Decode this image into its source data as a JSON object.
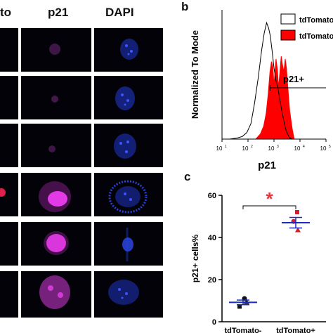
{
  "panel_a": {
    "column_headers": [
      "to",
      "p21",
      "DAPI"
    ]
  },
  "panel_b": {
    "letter": "b",
    "legend": [
      "tdTomato-",
      "tdTomato+"
    ],
    "gate_label": "p21+",
    "xlabel": "p21",
    "ylabel": "Normalized To Mode",
    "x_ticks": [
      "10",
      "10",
      "10",
      "10",
      "10"
    ],
    "x_tick_exponents": [
      "1",
      "2",
      "3",
      "4",
      "5"
    ],
    "colors": {
      "negative": "#000000",
      "positive": "#ff0000"
    }
  },
  "panel_c": {
    "letter": "c",
    "ylabel": "p21+ cells%",
    "categories": [
      "tdTomato-",
      "tdTomato+"
    ],
    "y_ticks": [
      "0",
      "20",
      "40",
      "60"
    ],
    "significance": "*",
    "colors": {
      "bars": "#1b2bbf",
      "group1": "#1b2bbf",
      "group2": "#d41c2c",
      "star": "#e8333a"
    }
  },
  "chart_data": [
    {
      "type": "area",
      "xlabel": "p21",
      "ylabel": "Normalized To Mode",
      "xscale": "log",
      "xlim": [
        10,
        100000
      ],
      "ylim": [
        0,
        100
      ],
      "legend_position": "top-right",
      "series": [
        {
          "name": "tdTomato-",
          "fill": "none",
          "x": [
            20,
            40,
            60,
            90,
            130,
            180,
            250,
            330,
            420,
            520,
            620,
            720,
            850,
            1000,
            1200,
            1400,
            1700,
            2000,
            2400,
            2800,
            3300,
            4000,
            5000
          ],
          "y": [
            0,
            1,
            2,
            5,
            12,
            28,
            48,
            68,
            82,
            90,
            86,
            80,
            68,
            55,
            45,
            40,
            30,
            22,
            14,
            8,
            4,
            1,
            0
          ]
        },
        {
          "name": "tdTomato+",
          "fill": "solid",
          "x": [
            200,
            300,
            400,
            500,
            600,
            700,
            800,
            900,
            1000,
            1100,
            1200,
            1350,
            1500,
            1700,
            1900,
            2100,
            2400,
            2700,
            3000,
            3400,
            4000,
            5000,
            6000
          ],
          "y": [
            0,
            4,
            10,
            20,
            35,
            52,
            60,
            56,
            42,
            52,
            62,
            54,
            40,
            52,
            64,
            58,
            52,
            62,
            55,
            40,
            22,
            8,
            0
          ]
        }
      ],
      "annotations": [
        {
          "text": "p21+",
          "gate_start_x": 700
        }
      ]
    },
    {
      "type": "scatter",
      "ylabel": "p21+ cells%",
      "categories": [
        "tdTomato-",
        "tdTomato+"
      ],
      "ylim": [
        0,
        60
      ],
      "y_ticks": [
        0,
        20,
        40,
        60
      ],
      "groups": [
        {
          "category": "tdTomato-",
          "points": [
            7.2,
            9.4,
            11.0
          ],
          "mean": 9.2,
          "sem": 1.1
        },
        {
          "category": "tdTomato+",
          "points": [
            43.5,
            47.6,
            52.0
          ],
          "mean": 47.0,
          "sem": 2.5
        }
      ],
      "significance": {
        "between": [
          "tdTomato-",
          "tdTomato+"
        ],
        "label": "*"
      }
    }
  ]
}
